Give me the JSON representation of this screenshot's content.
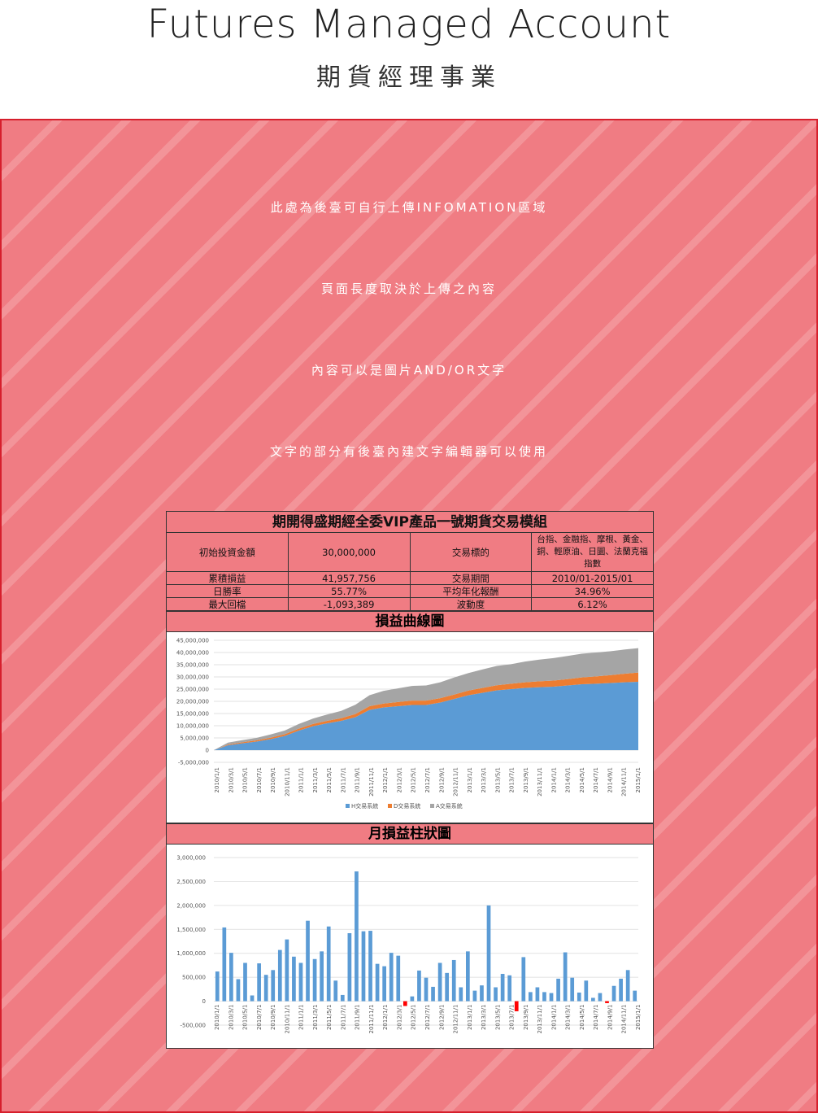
{
  "header": {
    "title": "Futures Managed Account",
    "subtitle": "期貨經理事業"
  },
  "info": {
    "line1": "此處為後臺可自行上傳INFOMATION區域",
    "line2": "頁面長度取決於上傳之內容",
    "line3": "內容可以是圖片AND/OR文字",
    "line4": "文字的部分有後臺內建文字編輯器可以使用"
  },
  "report": {
    "caption": "期開得盛期經全委VIP產品一號期貨交易模組",
    "rows": [
      [
        "初始投資金額",
        "30,000,000",
        "交易標的",
        "台指、金融指、摩根、黃金、銅、輕原油、日圜、法蘭克福指數"
      ],
      [
        "累積損益",
        "41,957,756",
        "交易期間",
        "2010/01-2015/01"
      ],
      [
        "日勝率",
        "55.77%",
        "平均年化報酬",
        "34.96%"
      ],
      [
        "最大回檔",
        "-1,093,389",
        "波動度",
        "6.12%"
      ]
    ]
  },
  "colors": {
    "panel_bg": "#f07c83",
    "panel_border": "#d61f2c",
    "series_h": "#5b9bd5",
    "series_d": "#ed7d31",
    "series_a": "#a5a5a5",
    "negative_bar": "#ff0000"
  },
  "chart_data": [
    {
      "type": "area",
      "title": "損益曲線圖",
      "stacked": true,
      "ylim": [
        -5000000,
        45000000
      ],
      "yticks": [
        "45,000,000",
        "40,000,000",
        "35,000,000",
        "30,000,000",
        "25,000,000",
        "20,000,000",
        "15,000,000",
        "10,000,000",
        "5,000,000",
        "0",
        "-5,000,000"
      ],
      "x_labels": [
        "2010/1/1",
        "2010/3/1",
        "2010/5/1",
        "2010/7/1",
        "2010/9/1",
        "2010/11/1",
        "2011/1/1",
        "2011/3/1",
        "2011/5/1",
        "2011/7/1",
        "2011/9/1",
        "2011/11/1",
        "2012/1/1",
        "2012/3/1",
        "2012/5/1",
        "2012/7/1",
        "2012/9/1",
        "2012/11/1",
        "2013/1/1",
        "2013/3/1",
        "2013/5/1",
        "2013/7/1",
        "2013/9/1",
        "2013/11/1",
        "2014/1/1",
        "2014/3/1",
        "2014/5/1",
        "2014/7/1",
        "2014/9/1",
        "2014/11/1",
        "2015/1/1"
      ],
      "legend_position": "bottom",
      "series": [
        {
          "name": "H交易系統",
          "values": [
            0,
            2000000,
            2800000,
            3500000,
            4500000,
            5800000,
            8000000,
            9800000,
            11000000,
            12000000,
            13500000,
            16500000,
            17500000,
            18000000,
            18500000,
            18500000,
            19500000,
            21000000,
            22500000,
            23500000,
            24500000,
            25000000,
            25500000,
            25800000,
            26000000,
            26500000,
            27000000,
            27200000,
            27500000,
            27800000,
            28000000
          ]
        },
        {
          "name": "D交易系統",
          "values": [
            0,
            300000,
            400000,
            500000,
            600000,
            700000,
            800000,
            900000,
            1000000,
            1100000,
            1300000,
            1500000,
            1600000,
            1700000,
            1800000,
            1800000,
            1800000,
            1800000,
            1900000,
            2000000,
            2100000,
            2200000,
            2300000,
            2400000,
            2500000,
            2600000,
            2800000,
            3000000,
            3200000,
            3500000,
            3800000
          ]
        },
        {
          "name": "A交易系統",
          "values": [
            0,
            800000,
            900000,
            1000000,
            1300000,
            1500000,
            1900000,
            2200000,
            2600000,
            3000000,
            3800000,
            4500000,
            5200000,
            5600000,
            6000000,
            6200000,
            6500000,
            7000000,
            7200000,
            7600000,
            7900000,
            8000000,
            8500000,
            8900000,
            9200000,
            9500000,
            9700000,
            9800000,
            9800000,
            9900000,
            10000000
          ]
        }
      ]
    },
    {
      "type": "bar",
      "title": "月損益柱狀圖",
      "ylim": [
        -500000,
        3000000
      ],
      "yticks": [
        "3,000,000",
        "2,500,000",
        "2,000,000",
        "1,500,000",
        "1,000,000",
        "500,000",
        "0",
        "-500,000"
      ],
      "x_labels": [
        "2010/1/1",
        "2010/3/1",
        "2010/5/1",
        "2010/7/1",
        "2010/9/1",
        "2010/11/1",
        "2011/1/1",
        "2011/3/1",
        "2011/5/1",
        "2011/7/1",
        "2011/9/1",
        "2011/11/1",
        "2012/1/1",
        "2012/3/1",
        "2012/5/1",
        "2012/7/1",
        "2012/9/1",
        "2012/11/1",
        "2013/1/1",
        "2013/3/1",
        "2013/5/1",
        "2013/7/1",
        "2013/9/1",
        "2013/11/1",
        "2014/1/1",
        "2014/3/1",
        "2014/5/1",
        "2014/7/1",
        "2014/9/1",
        "2014/11/1",
        "2015/1/1"
      ],
      "values": [
        620000,
        1540000,
        1010000,
        460000,
        800000,
        120000,
        790000,
        550000,
        650000,
        1070000,
        1290000,
        930000,
        800000,
        1680000,
        880000,
        1040000,
        1560000,
        430000,
        130000,
        1420000,
        2710000,
        1460000,
        1470000,
        780000,
        730000,
        1010000,
        950000,
        -100000,
        100000,
        640000,
        490000,
        300000,
        800000,
        590000,
        860000,
        290000,
        1040000,
        220000,
        330000,
        2000000,
        290000,
        570000,
        540000,
        -210000,
        920000,
        190000,
        290000,
        190000,
        170000,
        470000,
        1020000,
        490000,
        180000,
        430000,
        70000,
        170000,
        -40000,
        320000,
        470000,
        650000,
        220000
      ]
    }
  ]
}
